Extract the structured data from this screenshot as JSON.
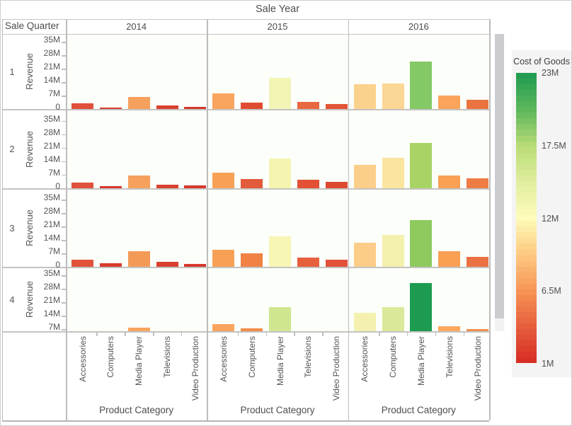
{
  "title": "Sale Year",
  "row_header": "Sale Quarter",
  "years": [
    "2014",
    "2015",
    "2016"
  ],
  "quarters": [
    "1",
    "2",
    "3",
    "4"
  ],
  "y_axis": {
    "title": "Revenue",
    "ticks": [
      {
        "label": "35M",
        "value": 35
      },
      {
        "label": "28M",
        "value": 28
      },
      {
        "label": "21M",
        "value": 21
      },
      {
        "label": "14M",
        "value": 14
      },
      {
        "label": "7M",
        "value": 7
      },
      {
        "label": "0",
        "value": 0
      }
    ]
  },
  "x_axis": {
    "title": "Product Category",
    "categories": [
      "Accessories",
      "Computers",
      "Media Player",
      "Televisions",
      "Video Production"
    ]
  },
  "legend": {
    "title": "Cost of Goods",
    "min": 1,
    "max": 23,
    "ticks": [
      {
        "label": "23M",
        "value": 23
      },
      {
        "label": "17.5M",
        "value": 17.5
      },
      {
        "label": "12M",
        "value": 12
      },
      {
        "label": "6.5M",
        "value": 6.5
      },
      {
        "label": "1M",
        "value": 1
      }
    ],
    "gradient_stops": [
      {
        "value": 1,
        "color": "#d62b22"
      },
      {
        "value": 3.5,
        "color": "#e4593a"
      },
      {
        "value": 6.5,
        "color": "#f79455"
      },
      {
        "value": 9.5,
        "color": "#fdce85"
      },
      {
        "value": 12,
        "color": "#fdfcba"
      },
      {
        "value": 14.5,
        "color": "#e4efa2"
      },
      {
        "value": 17.5,
        "color": "#b9dc77"
      },
      {
        "value": 20,
        "color": "#62b95c"
      },
      {
        "value": 23,
        "color": "#1d9b51"
      }
    ]
  },
  "chart_data": {
    "type": "bar",
    "facet_rows_field": "Sale Quarter",
    "facet_cols_field": "Sale Year",
    "facet_rows": [
      "1",
      "2",
      "3",
      "4"
    ],
    "facet_cols": [
      "2014",
      "2015",
      "2016"
    ],
    "categories": [
      "Accessories",
      "Computers",
      "Media Player",
      "Televisions",
      "Video Production"
    ],
    "y_label": "Revenue",
    "y_unit": "M",
    "ylim": [
      0,
      35
    ],
    "row4_clipped_below": 6.3,
    "color_encoding": "Cost of Goods (1M red - 23M green)",
    "panels": [
      {
        "quarter": "1",
        "year": "2014",
        "values": [
          3.2,
          1.2,
          6.8,
          2.3,
          1.4
        ],
        "colors": [
          "#e0503a",
          "#d83a2d",
          "#f6a05e",
          "#da412f",
          "#d6372c"
        ]
      },
      {
        "quarter": "1",
        "year": "2015",
        "values": [
          8.3,
          3.6,
          16.6,
          4.2,
          3.0
        ],
        "colors": [
          "#f9a55e",
          "#e04c31",
          "#f2f5b6",
          "#e8683f",
          "#e25435"
        ]
      },
      {
        "quarter": "1",
        "year": "2016",
        "values": [
          13.2,
          13.5,
          25.0,
          7.3,
          5.1
        ],
        "colors": [
          "#fbd28d",
          "#fbd694",
          "#83c965",
          "#fba55c",
          "#e9743f"
        ]
      },
      {
        "quarter": "2",
        "year": "2014",
        "values": [
          3.2,
          1.3,
          6.8,
          2.0,
          1.5
        ],
        "colors": [
          "#e0503a",
          "#d83a2d",
          "#f6a05e",
          "#da412f",
          "#d6372c"
        ]
      },
      {
        "quarter": "2",
        "year": "2015",
        "values": [
          8.2,
          5.1,
          15.8,
          4.6,
          3.6
        ],
        "colors": [
          "#f7a156",
          "#e25b3b",
          "#f5f5b2",
          "#e25133",
          "#dc4a31"
        ]
      },
      {
        "quarter": "2",
        "year": "2016",
        "values": [
          12.3,
          16.0,
          23.6,
          6.7,
          5.5
        ],
        "colors": [
          "#fbce89",
          "#fbe49e",
          "#a8d465",
          "#f9a055",
          "#ee7c45"
        ]
      },
      {
        "quarter": "3",
        "year": "2014",
        "values": [
          4.1,
          2.2,
          8.4,
          2.8,
          2.0
        ],
        "colors": [
          "#e0523a",
          "#d83a2d",
          "#f49a57",
          "#d83f2e",
          "#d6372c"
        ]
      },
      {
        "quarter": "3",
        "year": "2015",
        "values": [
          9.3,
          7.4,
          16.1,
          5.3,
          4.1
        ],
        "colors": [
          "#f8a156",
          "#f08246",
          "#f7f6b5",
          "#e6603b",
          "#e0523a"
        ]
      },
      {
        "quarter": "3",
        "year": "2016",
        "values": [
          13.0,
          16.8,
          24.8,
          8.4,
          5.6
        ],
        "colors": [
          "#fbcd88",
          "#f4f0ae",
          "#8fca5f",
          "#f9a055",
          "#ec7142"
        ]
      },
      {
        "quarter": "4",
        "year": "2014",
        "values": [
          null,
          null,
          8.1,
          null,
          null
        ],
        "colors": [
          null,
          null,
          "#f8a55e",
          null,
          null
        ]
      },
      {
        "quarter": "4",
        "year": "2015",
        "values": [
          9.9,
          7.7,
          18.8,
          null,
          null
        ],
        "colors": [
          "#f9a55e",
          "#f18c4a",
          "#cfe68f",
          null,
          null
        ]
      },
      {
        "quarter": "4",
        "year": "2016",
        "values": [
          16.0,
          18.8,
          31.3,
          9.0,
          7.3
        ],
        "colors": [
          "#f4f1b0",
          "#d9e99a",
          "#1d9b51",
          "#fca95e",
          "#f0914e"
        ]
      }
    ]
  }
}
